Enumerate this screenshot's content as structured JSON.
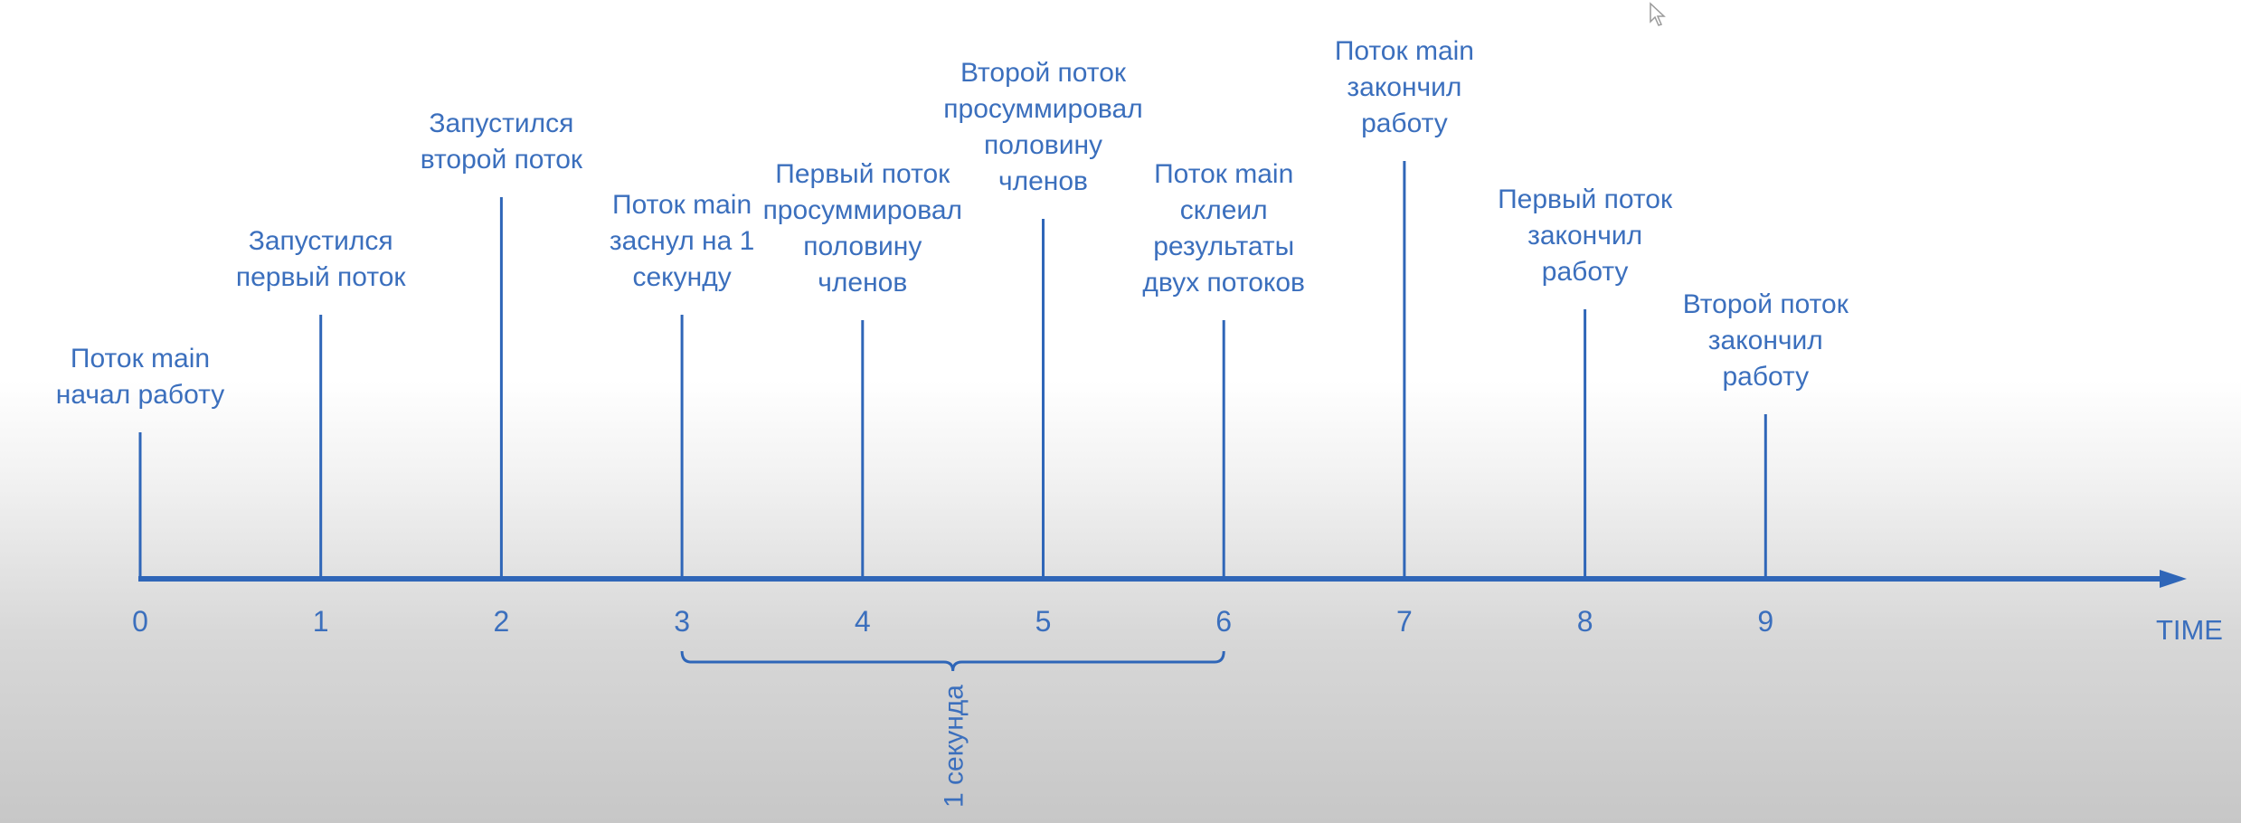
{
  "diagram": {
    "axis_label": "TIME",
    "events": [
      {
        "t": 0,
        "lines": [
          "Поток main",
          "начал работу"
        ]
      },
      {
        "t": 1,
        "lines": [
          "Запустился",
          "первый поток"
        ]
      },
      {
        "t": 2,
        "lines": [
          "Запустился",
          "второй поток"
        ]
      },
      {
        "t": 3,
        "lines": [
          "Поток main",
          "заснул на 1",
          "секунду"
        ]
      },
      {
        "t": 4,
        "lines": [
          "Первый поток",
          "просуммировал",
          "половину",
          "членов"
        ]
      },
      {
        "t": 5,
        "lines": [
          "Второй поток",
          "просуммировал",
          "половину",
          "членов"
        ]
      },
      {
        "t": 6,
        "lines": [
          "Поток main",
          "склеил",
          "результаты",
          "двух потоков"
        ]
      },
      {
        "t": 7,
        "lines": [
          "Поток main",
          "закончил",
          "работу"
        ]
      },
      {
        "t": 8,
        "lines": [
          "Первый поток",
          "закончил",
          "работу"
        ]
      },
      {
        "t": 9,
        "lines": [
          "Второй поток",
          "закончил",
          "работу"
        ]
      }
    ],
    "ticks": [
      "0",
      "1",
      "2",
      "3",
      "4",
      "5",
      "6",
      "7",
      "8",
      "9"
    ],
    "interval": {
      "from": 3,
      "to": 6,
      "label": "1 секунда"
    },
    "colors": {
      "accent": "#2f66b8",
      "text": "#3b6fbd"
    }
  }
}
